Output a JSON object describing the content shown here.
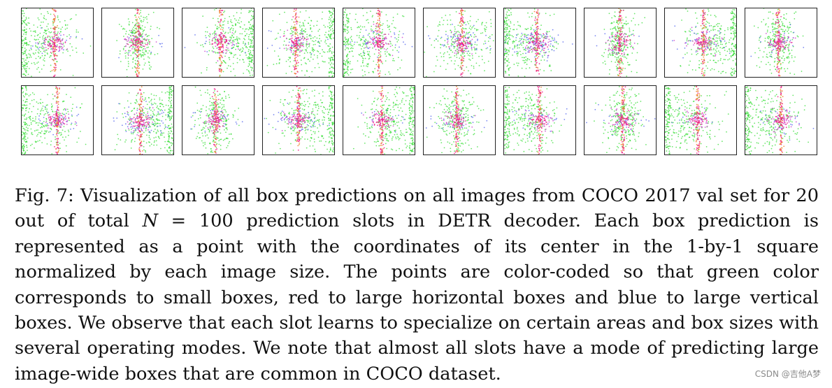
{
  "figure": {
    "label": "Fig. 7:",
    "caption_before_math": " Visualization of all box predictions on all images from COCO 2017 val set for 20 out of total ",
    "math_var": "N",
    "caption_after_math": " = 100 prediction slots in DETR decoder. Each box prediction is represented as a point with the coordinates of its center in the 1-by-1 square normalized by each image size. The points are color-coded so that green color corresponds to small boxes, red to large horizontal boxes and blue to large vertical boxes. We observe that each slot learns to specialize on certain areas and box sizes with several operating modes. We note that almost all slots have a mode of predicting large image-wide boxes that are common in COCO dataset.",
    "rows": 2,
    "columns": 10,
    "colors": {
      "small": "#33dd33",
      "horizontal": "#ee2288",
      "vertical": "#5566ee",
      "mixed": "#cc44cc",
      "tall": "#ee8833"
    }
  },
  "watermark": "CSDN @吉他A梦"
}
